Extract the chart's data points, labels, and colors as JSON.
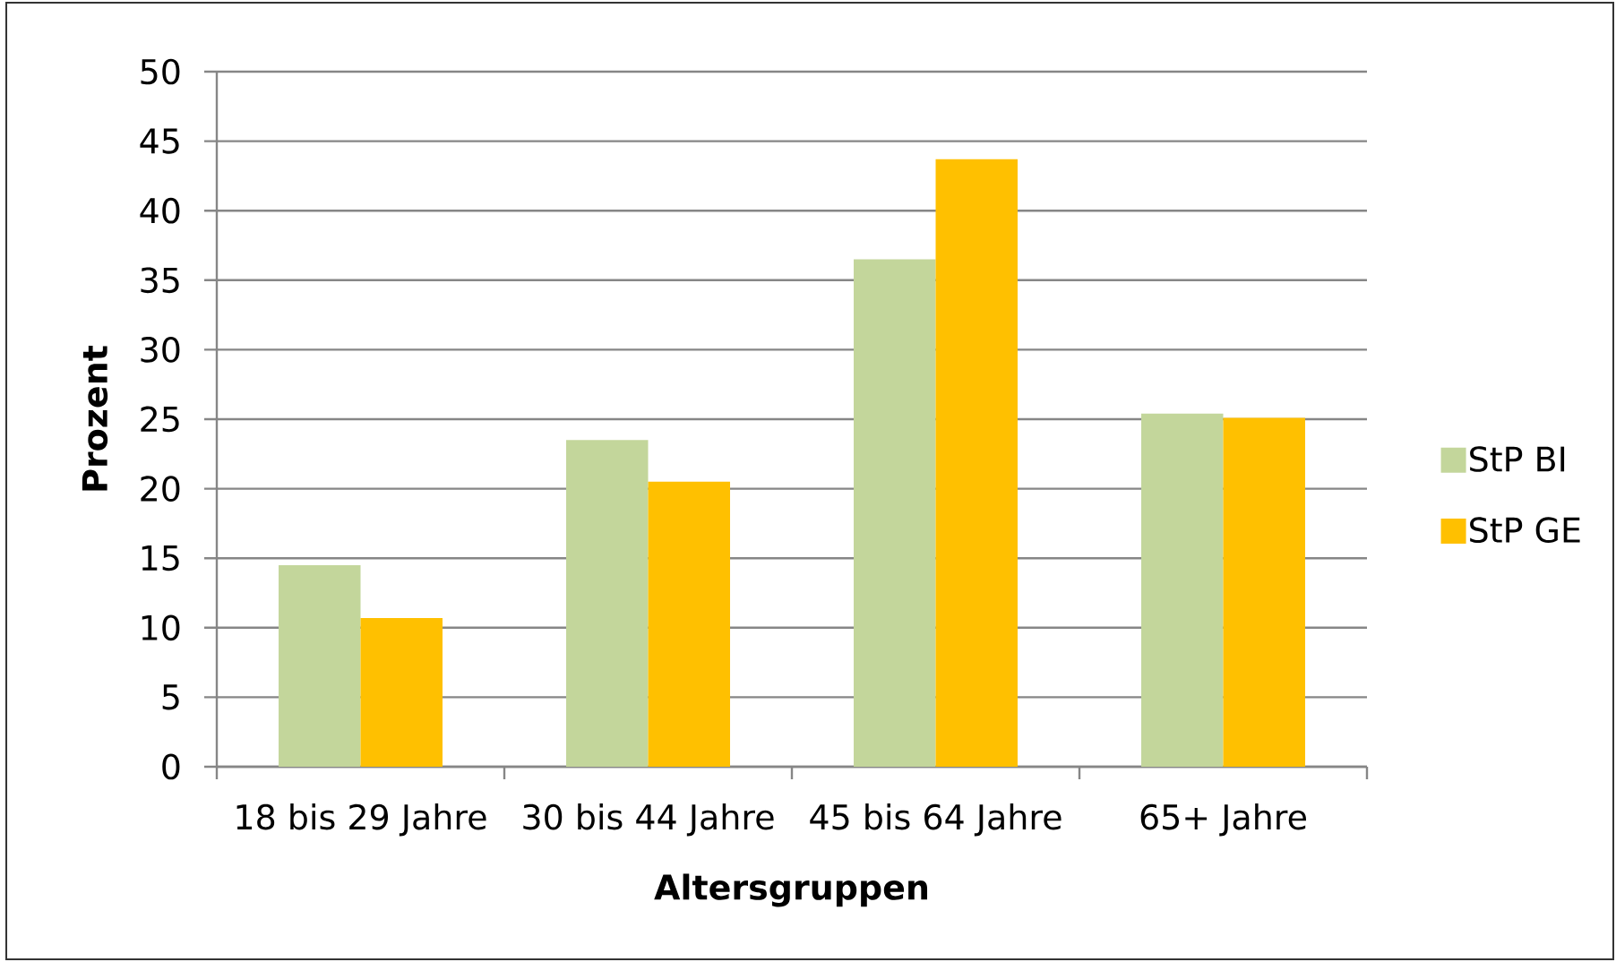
{
  "chart_data": {
    "type": "bar",
    "xlabel": "Altersgruppen",
    "ylabel": "Prozent",
    "categories": [
      "18 bis 29 Jahre",
      "30 bis 44 Jahre",
      "45 bis 64 Jahre",
      "65+ Jahre"
    ],
    "series": [
      {
        "name": "StP BI",
        "color": "#c3d69b",
        "values": [
          14.5,
          23.5,
          36.5,
          25.4
        ]
      },
      {
        "name": "StP GE",
        "color": "#ffc000",
        "values": [
          10.7,
          20.5,
          43.7,
          25.1
        ]
      }
    ],
    "ylim": [
      0,
      50
    ],
    "yticks": [
      0,
      5,
      10,
      15,
      20,
      25,
      30,
      35,
      40,
      45,
      50
    ],
    "grid": "y",
    "legend": "right"
  }
}
